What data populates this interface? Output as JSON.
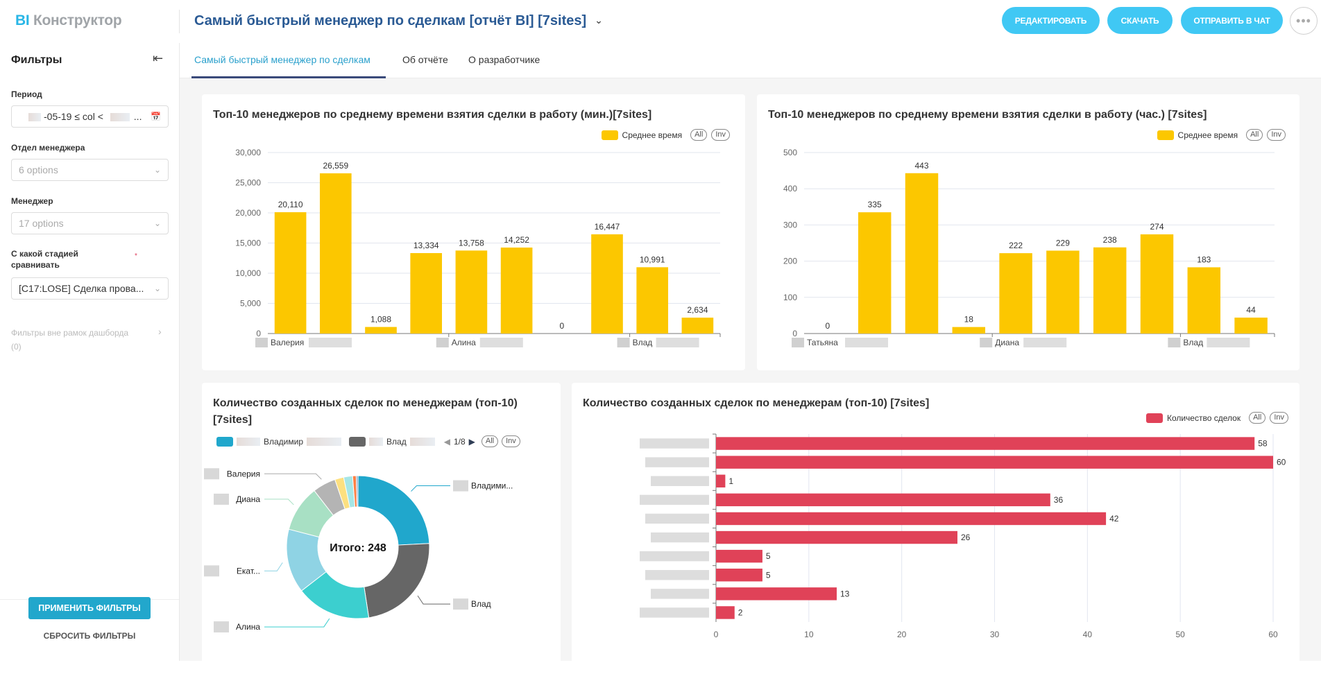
{
  "app": {
    "logo_prefix": "BI",
    "logo_name": "Конструктор"
  },
  "header": {
    "title": "Самый быстрый менеджер по сделкам [отчёт BI] [7sites]",
    "buttons": {
      "edit": "РЕДАКТИРОВАТЬ",
      "download": "СКАЧАТЬ",
      "send": "ОТПРАВИТЬ В ЧАТ",
      "more": "•••"
    }
  },
  "tabs": [
    {
      "label": "Самый быстрый менеджер по сделкам",
      "active": true
    },
    {
      "label": "Об отчёте",
      "active": false
    },
    {
      "label": "О разработчике",
      "active": false
    }
  ],
  "sidebar": {
    "title": "Фильтры",
    "filters": {
      "period": {
        "label": "Период",
        "value": "-05-19 ≤ col <",
        "suffix": "..."
      },
      "department": {
        "label": "Отдел менеджера",
        "placeholder": "6 options"
      },
      "manager": {
        "label": "Менеджер",
        "placeholder": "17 options"
      },
      "stage": {
        "label": "С какой стадией сравнивать",
        "required_mark": "*",
        "value": "[C17:LOSE] Сделка прова..."
      }
    },
    "outside_filters": {
      "label": "Фильтры вне рамок дашборда",
      "count": "(0)"
    },
    "apply_label": "ПРИМЕНИТЬ ФИЛЬТРЫ",
    "reset_label": "СБРОСИТЬ ФИЛЬТРЫ"
  },
  "legend_controls": {
    "all": "All",
    "inv": "Inv"
  },
  "chart_data": [
    {
      "id": "minutes",
      "type": "bar",
      "title": "Топ-10 менеджеров по среднему времени взятия сделки в работу (мин.)[7sites]",
      "legend": "Среднее время",
      "color": "#fcc700",
      "values": [
        20110,
        26559,
        1088,
        13334,
        13758,
        14252,
        0,
        16447,
        10991,
        2634
      ],
      "value_labels": [
        "20,110",
        "26,559",
        "1,088",
        "13,334",
        "13,758",
        "14,252",
        "0",
        "16,447",
        "10,991",
        "2,634"
      ],
      "x_tick_labels": [
        {
          "index": 0,
          "label": "Валерия"
        },
        {
          "index": 4,
          "label": "Алина"
        },
        {
          "index": 8,
          "label": "Влад"
        }
      ],
      "ylim": [
        0,
        30000
      ],
      "yticks": [
        0,
        5000,
        10000,
        15000,
        20000,
        25000,
        30000
      ],
      "ytick_labels": [
        "0",
        "5,000",
        "10,000",
        "15,000",
        "20,000",
        "25,000",
        "30,000"
      ],
      "grid": true,
      "legend_position": "top-right"
    },
    {
      "id": "hours",
      "type": "bar",
      "title": "Топ-10 менеджеров по среднему времени взятия сделки в работу (час.) [7sites]",
      "legend": "Среднее время",
      "color": "#fcc700",
      "values": [
        0,
        335,
        443,
        18,
        222,
        229,
        238,
        274,
        183,
        44
      ],
      "value_labels": [
        "0",
        "335",
        "443",
        "18",
        "222",
        "229",
        "238",
        "274",
        "183",
        "44"
      ],
      "x_tick_labels": [
        {
          "index": 0,
          "label": "Татьяна"
        },
        {
          "index": 4,
          "label": "Диана"
        },
        {
          "index": 8,
          "label": "Влад"
        }
      ],
      "ylim": [
        0,
        500
      ],
      "yticks": [
        0,
        100,
        200,
        300,
        400,
        500
      ],
      "ytick_labels": [
        "0",
        "100",
        "200",
        "300",
        "400",
        "500"
      ],
      "grid": true,
      "legend_position": "top-right"
    },
    {
      "id": "pie",
      "type": "pie",
      "title": "Количество созданных сделок по менеджерам (топ-10) [7sites]",
      "center_label": "Итого: 248",
      "legend_items": [
        {
          "label": "Владимир",
          "color": "#20a7cc"
        },
        {
          "label": "Влад",
          "color": "#666666"
        }
      ],
      "legend_page": "1/8",
      "slices": [
        {
          "label": "Владими...",
          "value": 60,
          "color": "#20a7cc"
        },
        {
          "label": "Влад",
          "value": 58,
          "color": "#666666"
        },
        {
          "label": "Алина",
          "value": 42,
          "color": "#3ccfcf"
        },
        {
          "label": "Екат...",
          "value": 36,
          "color": "#8fd3e4"
        },
        {
          "label": "Диана",
          "value": 26,
          "color": "#a8e0c4"
        },
        {
          "label": "Валерия",
          "value": 13,
          "color": "#b4b4b4"
        },
        {
          "label": "",
          "value": 5,
          "color": "#fde080"
        },
        {
          "label": "",
          "value": 5,
          "color": "#a6e6e6"
        },
        {
          "label": "",
          "value": 2,
          "color": "#ff7f44"
        },
        {
          "label": "",
          "value": 1,
          "color": "#8aa3c4"
        }
      ],
      "legend_position": "top"
    },
    {
      "id": "hbar",
      "type": "bar",
      "orientation": "horizontal",
      "title": "Количество созданных сделок по менеджерам (топ-10) [7sites]",
      "legend": "Количество сделок",
      "color": "#e04258",
      "values": [
        58,
        60,
        1,
        36,
        42,
        26,
        5,
        5,
        13,
        2
      ],
      "xlim": [
        0,
        60
      ],
      "xticks": [
        0,
        10,
        20,
        30,
        40,
        50,
        60
      ],
      "grid": true,
      "legend_position": "top-right"
    }
  ]
}
